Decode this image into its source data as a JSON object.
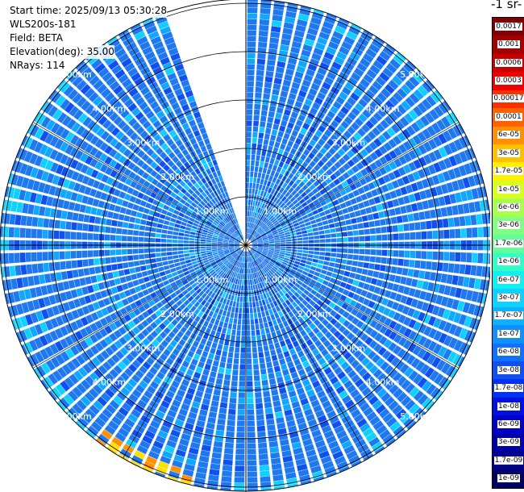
{
  "header": {
    "start_time": "Start time: 2025/09/13 05:30:28",
    "instrument": "WLS200s-181",
    "field": "Field: BETA",
    "elevation": "Elevation(deg): 35.00",
    "nrays": "NRays: 114"
  },
  "colorbar": {
    "title_fragment": "-1 sr-",
    "labels": [
      "0.0017",
      "0.001",
      "0.0006",
      "0.0003",
      "0.00017",
      "0.0001",
      "6e-05",
      "3e-05",
      "1.7e-05",
      "1e-05",
      "6e-06",
      "3e-06",
      "1.7e-06",
      "1e-06",
      "6e-07",
      "3e-07",
      "1.7e-07",
      "1e-07",
      "6e-08",
      "3e-08",
      "1.7e-08",
      "1e-08",
      "6e-09",
      "3e-09",
      "1.7e-09",
      "1e-09"
    ],
    "colors": [
      "#7f0000",
      "#a00000",
      "#c80000",
      "#ee0000",
      "#ff3000",
      "#ff6000",
      "#ff9000",
      "#ffc000",
      "#fff000",
      "#d8ff20",
      "#a8ff50",
      "#80ff80",
      "#60ff9c",
      "#30ffc8",
      "#10f0f0",
      "#10d0ff",
      "#10b0ff",
      "#1090ff",
      "#1070ff",
      "#1050f0",
      "#0030f0",
      "#0010e0",
      "#0000c8",
      "#0000a8",
      "#000088",
      "#000060"
    ]
  },
  "ring_labels": [
    "1.00km",
    "2.00km",
    "3.00km",
    "4.00km",
    "5.00km"
  ],
  "plot_colors": {
    "base": "#1e78f0",
    "dark": "#1050f0",
    "light": "#10a8ff",
    "cyan": "#10d0ff",
    "yellow": "#ffe000",
    "orange": "#ff9000"
  }
}
